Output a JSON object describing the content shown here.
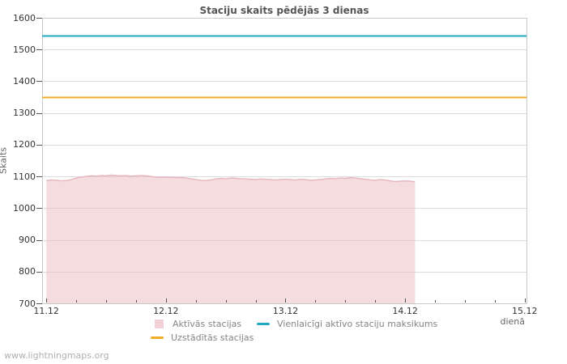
{
  "title": "Staciju skaits pēdējās 3 dienas",
  "watermark": "www.lightningmaps.org",
  "colors": {
    "background": "#ffffff",
    "grid": "#dcdcdc",
    "border": "#c9c9c9",
    "tick": "#555555",
    "tick_label": "#333333",
    "axis_title": "#666666",
    "title": "#555555",
    "legend_text": "#848484",
    "watermark": "#b0b0b0",
    "active_fill": "#e9b9c0",
    "active_edge": "#e5b6bc",
    "max_line": "#21a8c6",
    "installed_line": "#f0ad27"
  },
  "y_axis": {
    "label": "Skaits",
    "ticks": [
      1600,
      1500,
      1400,
      1300,
      1200,
      1100,
      1000,
      900,
      800,
      700
    ]
  },
  "x_axis": {
    "label": "dienā",
    "ticks": [
      "11.12",
      "12.12",
      "13.12",
      "14.12",
      "15.12"
    ]
  },
  "legend": [
    {
      "label": "Aktīvās stacijas",
      "swatch": "area"
    },
    {
      "label": "Vienlaicīgi aktīvo staciju maksikums",
      "swatch": "line"
    },
    {
      "label": "Uzstādītās stacijas",
      "swatch": "line"
    }
  ],
  "chart_data": {
    "type": "area",
    "title": "Staciju skaits pēdējās 3 dienas",
    "xlabel": "dienā",
    "ylabel": "Skaits",
    "ylim": [
      700,
      1600
    ],
    "y_tick_step": 100,
    "x_tick_labels": [
      "11.12",
      "12.12",
      "13.12",
      "14.12",
      "15.12"
    ],
    "x_minor_ticks_per_day": 4,
    "grid": "horizontal-only",
    "legend_position": "bottom-center",
    "series": [
      {
        "name": "Aktīvās stacijas",
        "type": "area",
        "fill": "#e9b9c0",
        "fill_opacity": 0.5,
        "edge": "#e5b6bc",
        "start_hour": 0,
        "step_hours": 1,
        "values": [
          1087,
          1089,
          1088,
          1086,
          1087,
          1090,
          1095,
          1098,
          1100,
          1102,
          1101,
          1103,
          1102,
          1104,
          1103,
          1102,
          1103,
          1101,
          1102,
          1103,
          1102,
          1100,
          1098,
          1097,
          1098,
          1097,
          1096,
          1097,
          1095,
          1093,
          1090,
          1088,
          1087,
          1089,
          1092,
          1094,
          1093,
          1095,
          1094,
          1093,
          1092,
          1091,
          1090,
          1092,
          1091,
          1090,
          1089,
          1090,
          1091,
          1090,
          1089,
          1091,
          1090,
          1088,
          1089,
          1090,
          1092,
          1094,
          1093,
          1095,
          1094,
          1096,
          1095,
          1093,
          1091,
          1089,
          1088,
          1090,
          1089,
          1086,
          1084,
          1085,
          1086,
          1085,
          1083
        ]
      },
      {
        "name": "Vienlaicīgi aktīvo staciju maksikums",
        "type": "hline",
        "value": 1545,
        "color": "#21a8c6"
      },
      {
        "name": "Uzstādītās stacijas",
        "type": "hline",
        "value": 1350,
        "color": "#f0ad27"
      }
    ]
  }
}
